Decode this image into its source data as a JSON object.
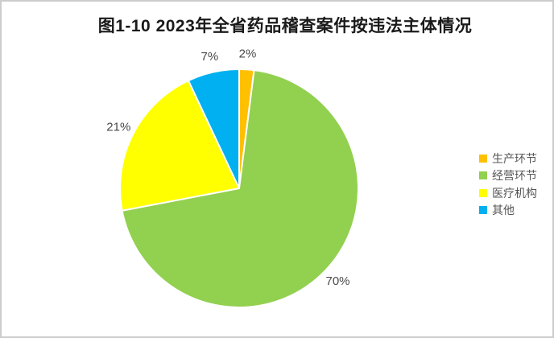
{
  "figure": {
    "title": "图1-10  2023年全省药品稽查案件按违法主体情况"
  },
  "chart_data": {
    "type": "pie",
    "title": "图1-10  2023年全省药品稽查案件按违法主体情况",
    "categories": [
      "生产环节",
      "经营环节",
      "医疗机构",
      "其他"
    ],
    "values": [
      2,
      70,
      21,
      7
    ],
    "data_labels": [
      "2%",
      "70%",
      "21%",
      "7%"
    ],
    "colors": [
      "#FFC000",
      "#92D050",
      "#FFFF00",
      "#00B0F0"
    ],
    "slice_keys": [
      "production-stage",
      "operation-stage",
      "medical-institution",
      "other"
    ],
    "start_angle_deg": 0,
    "direction": "clockwise",
    "legend_position": "right",
    "label_color": "#4a4a4a",
    "slice_border_color": "#ffffff"
  }
}
